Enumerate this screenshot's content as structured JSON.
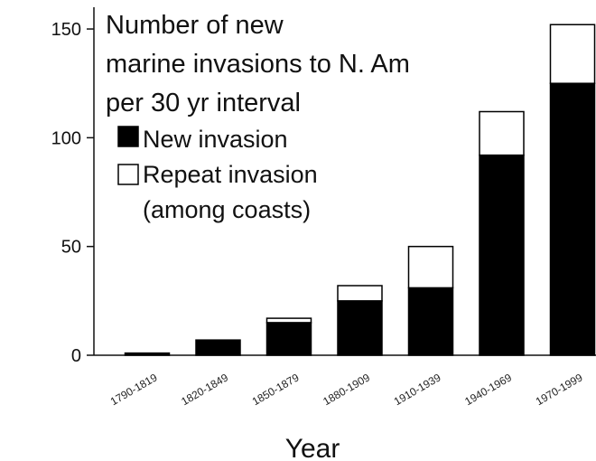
{
  "chart_data": {
    "type": "bar",
    "stacked": true,
    "title": "Number of new marine invasions to N. Am per 30 yr interval",
    "title_lines": [
      "Number of new",
      "marine invasions to N. Am",
      "per 30 yr interval"
    ],
    "xlabel": "Year",
    "ylabel": "",
    "ylim": [
      0,
      160
    ],
    "yticks": [
      0,
      50,
      100,
      150
    ],
    "grid": false,
    "legend_position": "top-left",
    "categories": [
      "1790-1819",
      "1820-1849",
      "1850-1879",
      "1880-1909",
      "1910-1939",
      "1940-1969",
      "1970-1999"
    ],
    "series": [
      {
        "name": "New invasion",
        "legend_lines": [
          "New invasion"
        ],
        "color": "#000000",
        "values": [
          1,
          7,
          15,
          25,
          31,
          92,
          125
        ]
      },
      {
        "name": "Repeat invasion (among coasts)",
        "legend_lines": [
          "Repeat invasion",
          "(among coasts)"
        ],
        "color": "#ffffff",
        "values": [
          0,
          0,
          2,
          7,
          19,
          20,
          27
        ]
      }
    ]
  }
}
